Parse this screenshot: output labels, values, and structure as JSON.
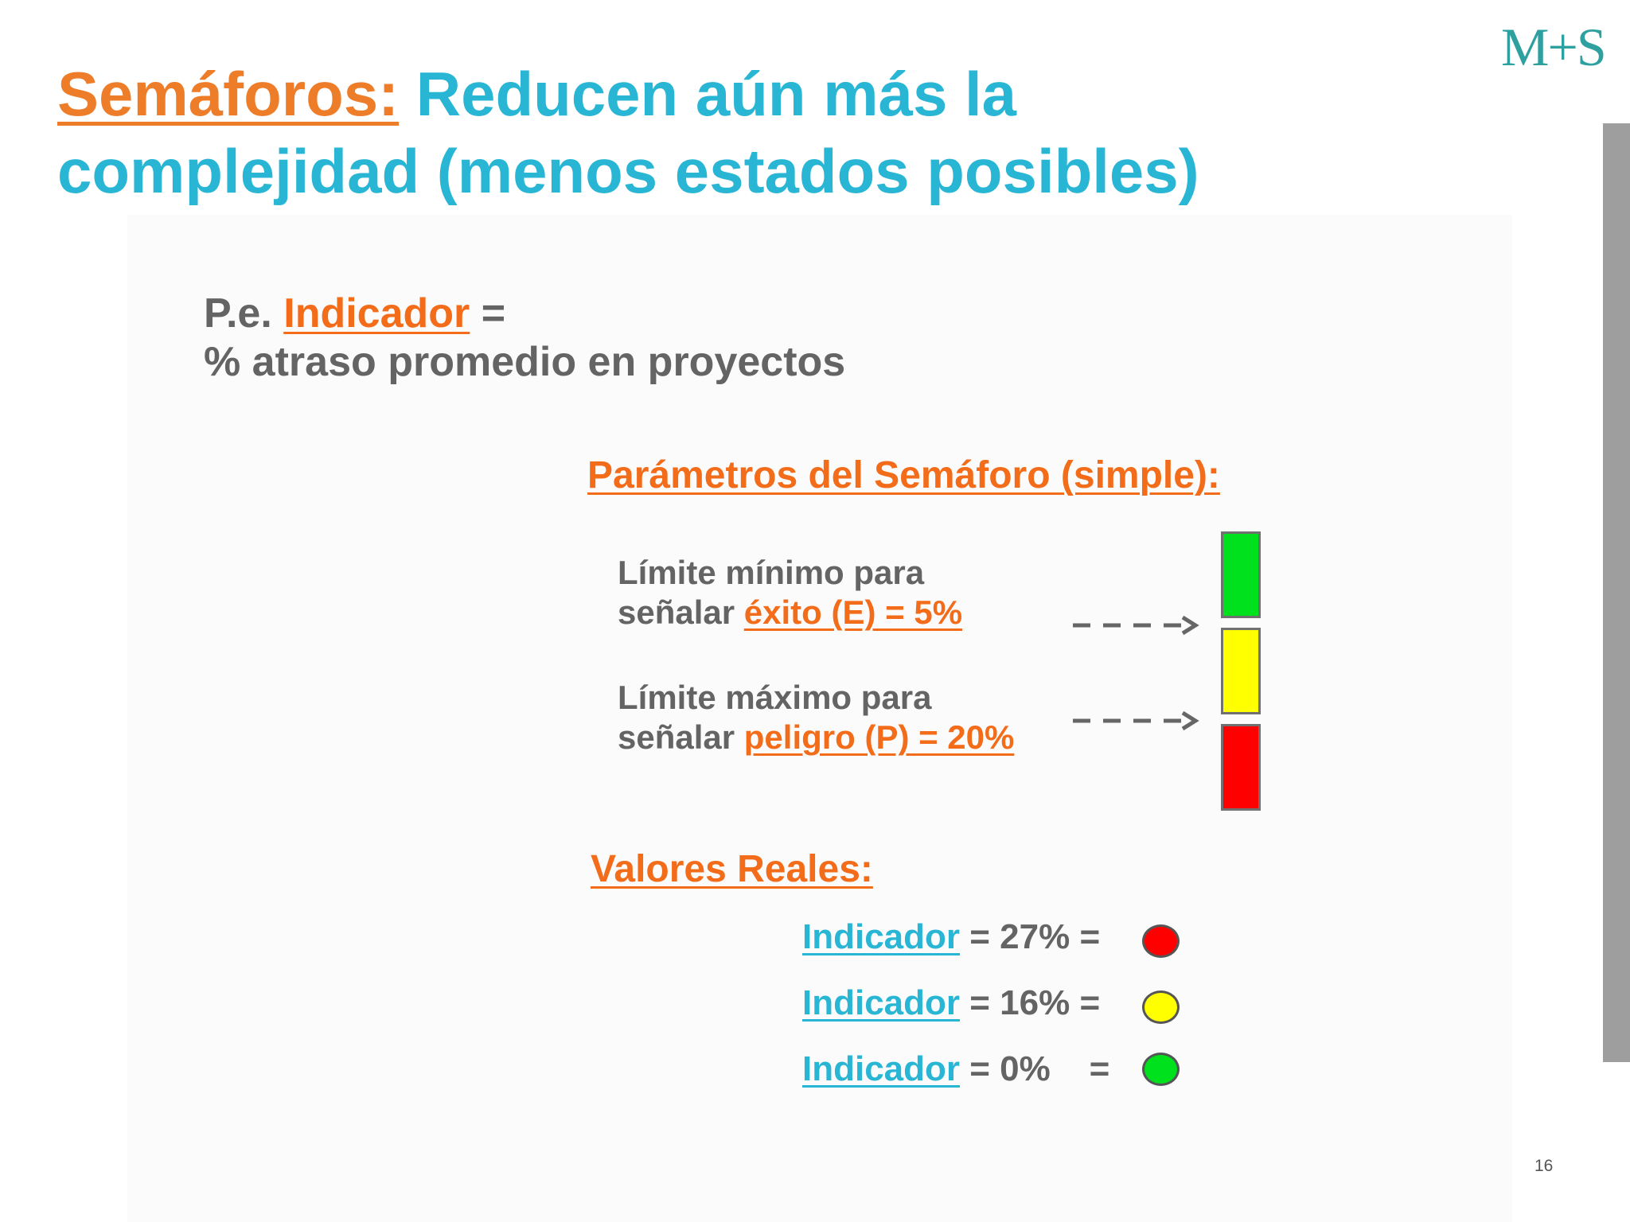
{
  "logo": "M+S",
  "title": {
    "highlight": "Semáforos:",
    "line1": " Reducen aún más la",
    "line2": "complejidad (menos estados posibles)"
  },
  "indicator_def": {
    "prefix": "P.e. ",
    "term": "Indicador",
    "eq": " =",
    "line2": "% atraso promedio en proyectos"
  },
  "params": {
    "heading": "Parámetros del Semáforo (simple):",
    "limits": [
      {
        "line1": "Límite mínimo para",
        "pre": "señalar ",
        "value": "éxito (E) = 5%"
      },
      {
        "line1": "Límite máximo para",
        "pre": "señalar ",
        "value": "peligro (P) = 20%"
      }
    ]
  },
  "colors": {
    "green": "#00e11e",
    "yellow": "#ffff00",
    "red": "#ff0000",
    "orange": "#f26c1a",
    "cyan": "#29b6d5"
  },
  "reales": {
    "heading": "Valores Reales:",
    "rows": [
      {
        "label": "Indicador",
        "text": " = 27% =",
        "status": "red"
      },
      {
        "label": "Indicador",
        "text": " = 16% =",
        "status": "yellow"
      },
      {
        "label": "Indicador",
        "text": " = 0%    =",
        "status": "green"
      }
    ]
  },
  "page_number": "16"
}
